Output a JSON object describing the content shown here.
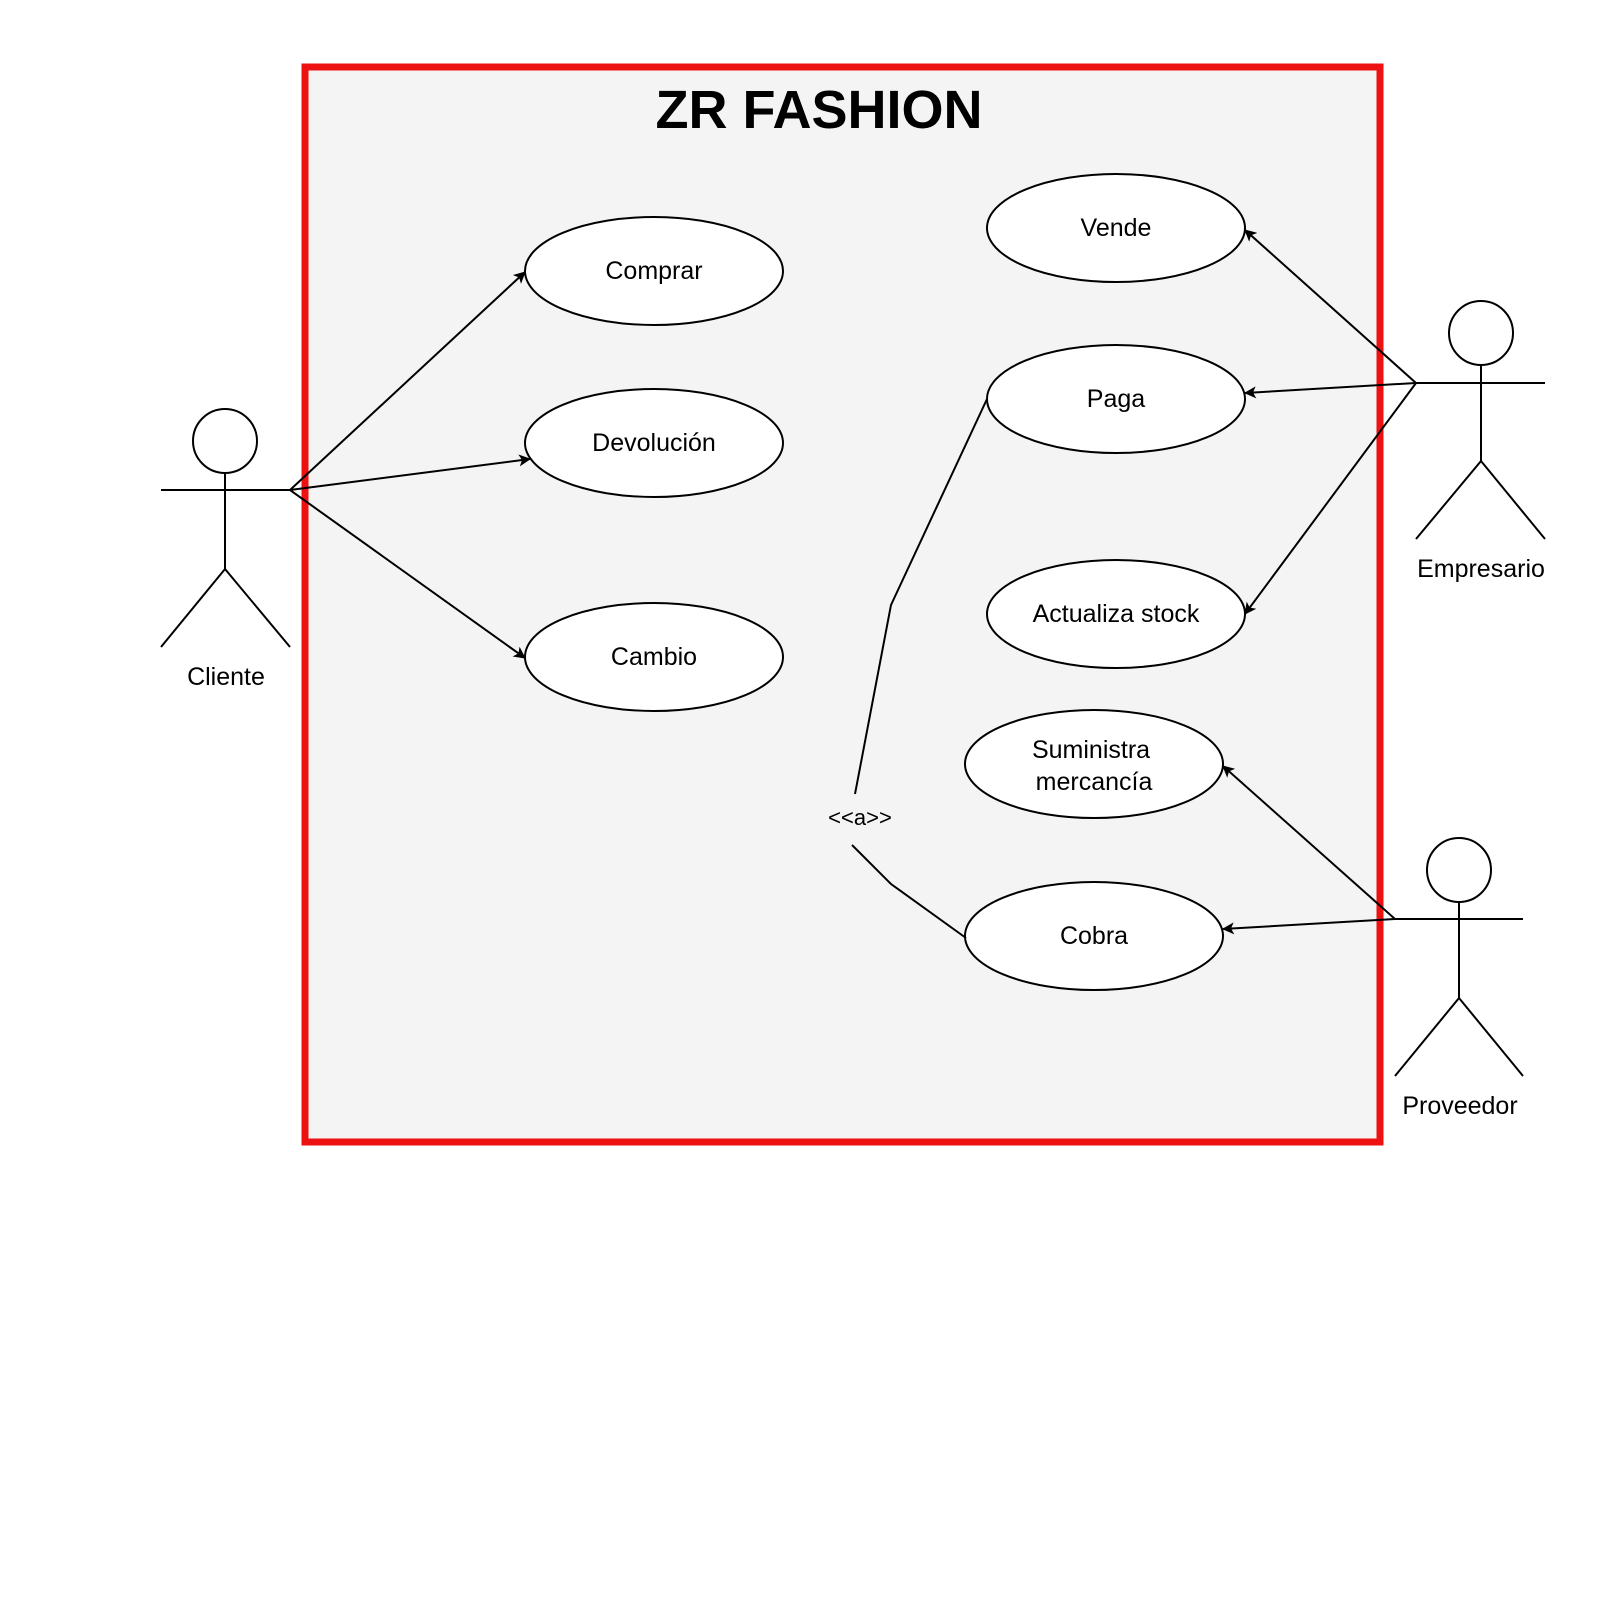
{
  "system": {
    "title": "ZR FASHION",
    "border_color": "#ee1111",
    "fill_color": "#f4f4f4"
  },
  "actors": {
    "cliente": "Cliente",
    "empresario": "Empresario",
    "proveedor": "Proveedor"
  },
  "use_cases": {
    "comprar": "Comprar",
    "devolucion": "Devolución",
    "cambio": "Cambio",
    "vende": "Vende",
    "paga": "Paga",
    "actualiza_stock": "Actualiza stock",
    "suministra_line1": "Suministra",
    "suministra_line2": "mercancía",
    "cobra": "Cobra"
  },
  "relation_label": "<<a>>"
}
